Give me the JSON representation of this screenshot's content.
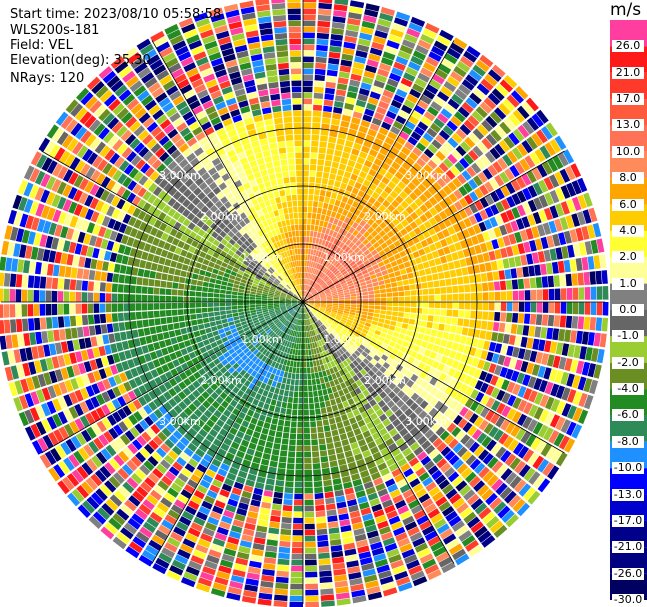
{
  "header": {
    "start_time": "Start time: 2023/08/10 05:58:58",
    "instrument": "WLS200s-181",
    "field": "Field: VEL",
    "elevation": "Elevation(deg): 35.30",
    "nrays": "NRays: 120"
  },
  "colorbar": {
    "unit": "m/s",
    "levels": [
      {
        "value": "26.0",
        "color": "#ff3ea0"
      },
      {
        "value": "21.0",
        "color": "#ff1a1a"
      },
      {
        "value": "17.0",
        "color": "#ff3a2a"
      },
      {
        "value": "13.0",
        "color": "#ff5a3c"
      },
      {
        "value": "10.0",
        "color": "#ff7256"
      },
      {
        "value": "8.0",
        "color": "#ff8a5a"
      },
      {
        "value": "6.0",
        "color": "#ffa500"
      },
      {
        "value": "4.0",
        "color": "#ffcc00"
      },
      {
        "value": "2.0",
        "color": "#ffff33"
      },
      {
        "value": "1.0",
        "color": "#ffff99"
      },
      {
        "value": "0.0",
        "color": "#808080"
      },
      {
        "value": "-1.0",
        "color": "#666666"
      },
      {
        "value": "-2.0",
        "color": "#9acd32"
      },
      {
        "value": "-4.0",
        "color": "#6b8e23"
      },
      {
        "value": "-6.0",
        "color": "#228b22"
      },
      {
        "value": "-8.0",
        "color": "#2e8b57"
      },
      {
        "value": "-10.0",
        "color": "#1e90ff"
      },
      {
        "value": "-13.0",
        "color": "#0000ff"
      },
      {
        "value": "-17.0",
        "color": "#0000cd"
      },
      {
        "value": "-21.0",
        "color": "#00008b"
      },
      {
        "value": "-26.0",
        "color": "#000080"
      },
      {
        "value": "-30.0",
        "color": "#000060"
      }
    ]
  },
  "chart_data": {
    "type": "heatmap",
    "projection": "polar PPI",
    "field": "VEL",
    "units": "m/s",
    "n_rays": 120,
    "range_rings_km": [
      1.0,
      2.0,
      3.0
    ],
    "range_ring_labels": [
      "1.00km",
      "2.00km",
      "3.00km"
    ],
    "max_range_km": 5.0,
    "velocity_pattern": {
      "core_near": "positive (toward NE/N), about 6–10 m/s",
      "mid_ring": "positive about 2–6 m/s north/east, negative about -4 to -8 m/s south/west",
      "southwest_core": "negative about -10 to -13 m/s",
      "outer": "noise beyond ~3 km"
    }
  }
}
